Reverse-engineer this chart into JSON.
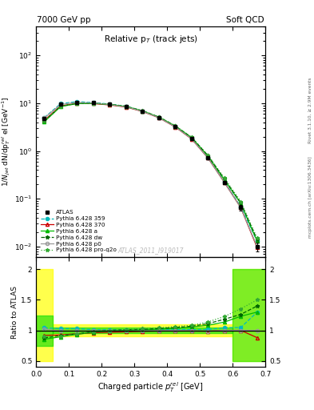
{
  "title_top_left": "7000 GeV pp",
  "title_top_right": "Soft QCD",
  "plot_title": "Relative p$_T$ (track jets)",
  "xlabel": "Charged particle $p_T^{rel}$ [GeV]",
  "ylabel": "$1/N_{jet}$ dN/dp$_T^{rel}$ el [GeV$^{-1}$]",
  "ylabel_ratio": "Ratio to ATLAS",
  "right_label_top": "Rivet 3.1.10, ≥ 2.9M events",
  "right_label_bot": "mcplots.cern.ch [arXiv:1306.3436]",
  "watermark": "ATLAS_2011_I919017",
  "xlim": [
    0.0,
    0.7
  ],
  "ylim_main": [
    0.006,
    400
  ],
  "ylim_ratio": [
    0.4,
    2.2
  ],
  "x": [
    0.025,
    0.075,
    0.125,
    0.175,
    0.225,
    0.275,
    0.325,
    0.375,
    0.425,
    0.475,
    0.525,
    0.575,
    0.625,
    0.675
  ],
  "atlas_y": [
    4.8,
    9.5,
    10.5,
    10.2,
    9.5,
    8.5,
    6.8,
    5.0,
    3.2,
    1.8,
    0.72,
    0.22,
    0.065,
    0.01
  ],
  "atlas_yerr": [
    0.3,
    0.4,
    0.4,
    0.4,
    0.35,
    0.3,
    0.25,
    0.2,
    0.15,
    0.1,
    0.05,
    0.02,
    0.008,
    0.002
  ],
  "py359_y": [
    5.0,
    9.8,
    10.8,
    10.3,
    9.6,
    8.6,
    6.9,
    5.05,
    3.25,
    1.82,
    0.73,
    0.23,
    0.068,
    0.013
  ],
  "py370_y": [
    4.4,
    8.8,
    9.9,
    9.8,
    9.2,
    8.3,
    6.7,
    4.95,
    3.18,
    1.78,
    0.71,
    0.22,
    0.065,
    0.0095
  ],
  "pya_y": [
    4.1,
    8.5,
    9.8,
    9.9,
    9.4,
    8.5,
    6.85,
    5.1,
    3.3,
    1.9,
    0.78,
    0.25,
    0.08,
    0.013
  ],
  "pydw_y": [
    4.2,
    8.7,
    9.9,
    10.0,
    9.5,
    8.6,
    6.9,
    5.15,
    3.35,
    1.92,
    0.8,
    0.26,
    0.082,
    0.014
  ],
  "pyp0_y": [
    4.9,
    9.4,
    10.4,
    10.1,
    9.4,
    8.4,
    6.75,
    4.98,
    3.2,
    1.79,
    0.71,
    0.22,
    0.065,
    0.01
  ],
  "pyproq_y": [
    4.3,
    8.6,
    9.9,
    10.0,
    9.5,
    8.6,
    7.0,
    5.2,
    3.4,
    1.95,
    0.82,
    0.27,
    0.088,
    0.015
  ],
  "ratio_359": [
    1.04,
    1.03,
    1.03,
    1.01,
    1.01,
    1.01,
    1.015,
    1.01,
    1.016,
    1.011,
    1.014,
    1.045,
    1.046,
    1.3
  ],
  "ratio_370": [
    0.917,
    0.926,
    0.943,
    0.961,
    0.968,
    0.976,
    0.985,
    0.99,
    0.994,
    0.989,
    0.986,
    1.0,
    1.0,
    0.88
  ],
  "ratio_a": [
    0.854,
    0.895,
    0.933,
    0.971,
    0.989,
    1.0,
    1.007,
    1.02,
    1.031,
    1.056,
    1.083,
    1.136,
    1.231,
    1.3
  ],
  "ratio_dw": [
    0.875,
    0.916,
    0.943,
    0.98,
    1.0,
    1.012,
    1.015,
    1.03,
    1.047,
    1.067,
    1.111,
    1.182,
    1.262,
    1.4
  ],
  "ratio_p0": [
    1.021,
    0.989,
    0.99,
    0.99,
    0.989,
    0.988,
    0.993,
    0.996,
    1.0,
    0.994,
    0.986,
    1.0,
    1.0,
    1.0
  ],
  "ratio_proq": [
    0.896,
    0.905,
    0.943,
    0.98,
    1.0,
    1.012,
    1.029,
    1.04,
    1.063,
    1.083,
    1.139,
    1.227,
    1.354,
    1.5
  ],
  "colors": {
    "atlas": "#000000",
    "py359": "#00bbbb",
    "py370": "#cc0000",
    "pya": "#00bb00",
    "pydw": "#006600",
    "pyp0": "#999999",
    "pyproq": "#33aa33"
  },
  "band_yellow_first": [
    0.0,
    0.05,
    0.5,
    2.0
  ],
  "band_green_first": [
    0.0,
    0.05,
    0.75,
    1.25
  ],
  "band_yellow_mid": [
    0.05,
    0.6,
    0.9,
    1.1
  ],
  "band_green_mid": [
    0.05,
    0.6,
    0.95,
    1.05
  ],
  "band_yellow_last": [
    0.6,
    0.7,
    0.5,
    2.0
  ],
  "band_green_last": [
    0.6,
    0.7,
    0.5,
    2.0
  ]
}
